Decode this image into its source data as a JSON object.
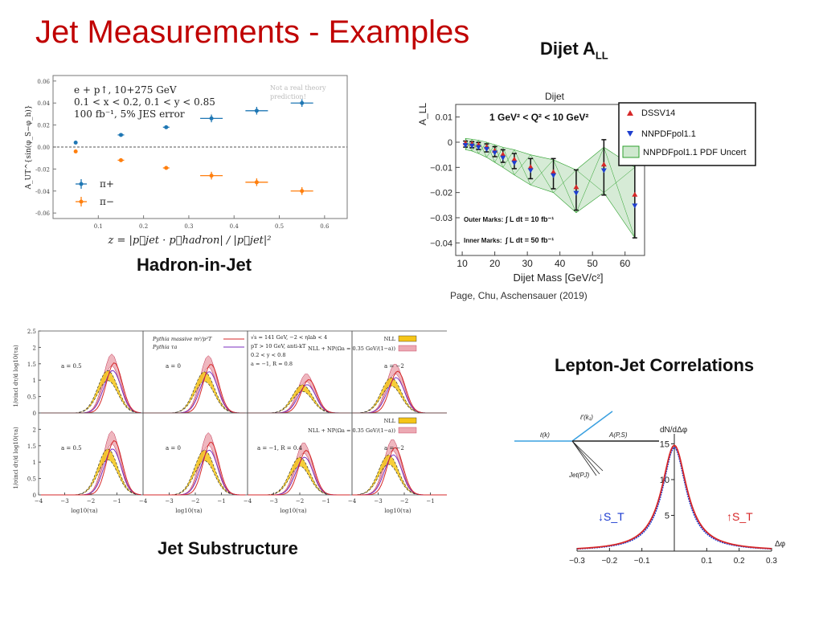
{
  "slide": {
    "title": "Jet Measurements - Examples",
    "dijet_caption_main": "Dijet A",
    "dijet_caption_sub": "LL",
    "hadron_caption": "Hadron-in-Jet",
    "lepton_caption": "Lepton-Jet Correlations",
    "substructure_caption": "Jet Substructure",
    "citation": "Page, Chu, Aschensauer (2019)"
  },
  "colors": {
    "title": "#c00000",
    "pi_plus": "#1f77b4",
    "pi_minus": "#ff7f0e",
    "dssv": "#d62728",
    "nnpdf": "#1f3fcf",
    "band": "#2ca02c",
    "nll": "#f5c518",
    "np": "#e07080"
  },
  "chart_data": [
    {
      "type": "scatter",
      "panel": "hadron-in-jet",
      "xlabel": "z = |p⃗jet · p⃗hadron| / |p⃗jet|²",
      "ylabel": "A_UT^{sin(φ_S−φ_h)}",
      "xlim": [
        0.0,
        0.65
      ],
      "ylim": [
        -0.065,
        0.065
      ],
      "x_ticks": [
        "0.1",
        "0.2",
        "0.3",
        "0.4",
        "0.5",
        "0.6"
      ],
      "y_ticks": [
        "0.06",
        "0.04",
        "0.02",
        "0.00",
        "-0.02",
        "-0.04",
        "-0.06"
      ],
      "annotation_lines": [
        "e + p↑, 10+275 GeV",
        "0.1 < x < 0.2, 0.1 < y < 0.85",
        "100 fb⁻¹, 5% JES error"
      ],
      "faint_note": [
        "Not a real theory",
        "prediction!"
      ],
      "series": [
        {
          "name": "π+",
          "x": [
            0.05,
            0.15,
            0.25,
            0.35,
            0.45,
            0.55
          ],
          "y": [
            0.004,
            0.011,
            0.018,
            0.026,
            0.033,
            0.04
          ]
        },
        {
          "name": "π−",
          "x": [
            0.05,
            0.15,
            0.25,
            0.35,
            0.45,
            0.55
          ],
          "y": [
            -0.004,
            -0.012,
            -0.019,
            -0.026,
            -0.032,
            -0.04
          ]
        }
      ],
      "reference_line": 0.0
    },
    {
      "type": "scatter",
      "panel": "dijet-all",
      "title": "Dijet",
      "xlabel": "Dijet Mass [GeV/c²]",
      "ylabel": "A_LL",
      "xlim": [
        8,
        66
      ],
      "ylim": [
        -0.045,
        0.015
      ],
      "x_ticks": [
        "10",
        "20",
        "30",
        "40",
        "50",
        "60"
      ],
      "y_ticks": [
        "0.01",
        "0",
        "−0.01",
        "−0.02",
        "−0.03",
        "−0.04"
      ],
      "range_label": "1 GeV² < Q² < 10 GeV²",
      "outer_marks_label": "Outer Marks:",
      "outer_marks_value": "∫ L dt = 10 fb⁻¹",
      "inner_marks_label": "Inner Marks:",
      "inner_marks_value": "∫ L dt = 50 fb⁻¹",
      "legend": [
        "DSSV14",
        "NNPDFpol1.1",
        "NNPDFpol1.1 PDF Uncert"
      ],
      "x": [
        11,
        13,
        15,
        17.5,
        20,
        22.5,
        26,
        31,
        38,
        45,
        53.5,
        63
      ],
      "series": [
        {
          "name": "DSSV14",
          "values": [
            -0.0005,
            -0.0008,
            -0.0012,
            -0.002,
            -0.0035,
            -0.005,
            -0.007,
            -0.01,
            -0.012,
            -0.018,
            -0.009,
            -0.021
          ]
        },
        {
          "name": "NNPDFpol1.1",
          "values": [
            -0.001,
            -0.0012,
            -0.0018,
            -0.0025,
            -0.004,
            -0.006,
            -0.008,
            -0.011,
            -0.013,
            -0.02,
            -0.011,
            -0.025
          ]
        }
      ],
      "band_upper": [
        0.0015,
        0.0012,
        0.0008,
        0.0,
        -0.001,
        -0.002,
        -0.003,
        -0.005,
        -0.007,
        -0.011,
        -0.002,
        -0.01
      ],
      "band_lower": [
        -0.003,
        -0.0035,
        -0.0045,
        -0.006,
        -0.008,
        -0.01,
        -0.013,
        -0.017,
        -0.02,
        -0.028,
        -0.02,
        -0.038
      ],
      "outer_err": [
        0.0012,
        0.0012,
        0.0014,
        0.0016,
        0.002,
        0.0025,
        0.003,
        0.004,
        0.006,
        0.008,
        0.011,
        0.015
      ],
      "inner_err": [
        0.0006,
        0.0006,
        0.0007,
        0.0008,
        0.001,
        0.0012,
        0.0015,
        0.002,
        0.003,
        0.004,
        0.005,
        0.007
      ]
    },
    {
      "type": "area",
      "panel": "jet-substructure",
      "xlabel": "log10(τa)",
      "ylabel": "1/σincl dτ/d log10(τa)",
      "xlim": [
        -4,
        0
      ],
      "ylim": [
        0,
        2.5
      ],
      "x_ticks": [
        "−4",
        "−3",
        "−2",
        "−1"
      ],
      "y_ticks": [
        "2.5",
        "2",
        "1.5",
        "1",
        "0.5",
        "0"
      ],
      "legend_pythia": [
        "Pythia massive m²/p²T",
        "Pythia τa"
      ],
      "legend_nll": [
        "NLL",
        "NLL + NP(Ωa = 0.35 GeV/(1−a))"
      ],
      "kinematics": [
        "√s = 141 GeV, −2 < ηlab < 4",
        "pT > 10 GeV, anti-kT",
        "0.2 < y < 0.8",
        "a = −1, R = 0.8"
      ],
      "panels": [
        {
          "label": "a = 0.5",
          "peak": -1.25,
          "height": 1.8
        },
        {
          "label": "a = 0",
          "peak": -1.55,
          "height": 1.75
        },
        {
          "label": "",
          "peak": -1.8,
          "height": 1.2
        },
        {
          "label": "a = −2",
          "peak": -2.4,
          "height": 1.5
        },
        {
          "label": "a = 0.5",
          "peak": -1.25,
          "height": 1.95
        },
        {
          "label": "a = 0",
          "peak": -1.55,
          "height": 1.9
        },
        {
          "label": "a = −1, R = 0.4",
          "peak": -1.9,
          "height": 1.6
        },
        {
          "label": "a = −2",
          "peak": -2.5,
          "height": 1.7
        }
      ]
    },
    {
      "type": "line",
      "panel": "lepton-jet",
      "ylabel": "dN/dΔφ",
      "xlabel": "Δφ",
      "xlim": [
        -0.3,
        0.3
      ],
      "ylim": [
        0,
        15.5
      ],
      "x_ticks": [
        "−0.3",
        "−0.2",
        "−0.1",
        "0.1",
        "0.2",
        "0.3"
      ],
      "y_ticks": [
        "15",
        "10",
        "5"
      ],
      "series": [
        {
          "name": "↓S_T",
          "peak": 14.5,
          "width": 0.045
        },
        {
          "name": "↑S_T",
          "peak": 14.8,
          "width": 0.047
        }
      ],
      "diagram_labels": [
        "ℓ(k)",
        "ℓ′(k₁)",
        "A(P,S)",
        "Jet(PJ)"
      ]
    }
  ]
}
